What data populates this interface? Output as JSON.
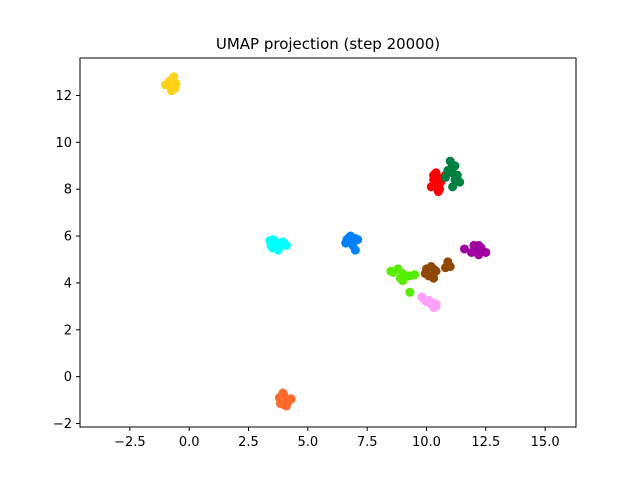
{
  "chart_data": {
    "type": "scatter",
    "title": "UMAP projection (step 20000)",
    "xlabel": "",
    "ylabel": "",
    "xlim": [
      -4.6,
      16.3
    ],
    "ylim": [
      -2.15,
      13.6
    ],
    "xticks": [
      -2.5,
      0.0,
      2.5,
      5.0,
      7.5,
      10.0,
      12.5,
      15.0
    ],
    "xtick_labels": [
      "−2.5",
      "0.0",
      "2.5",
      "5.0",
      "7.5",
      "10.0",
      "12.5",
      "15.0"
    ],
    "yticks": [
      -2,
      0,
      2,
      4,
      6,
      8,
      10,
      12
    ],
    "ytick_labels": [
      "−2",
      "0",
      "2",
      "4",
      "6",
      "8",
      "10",
      "12"
    ],
    "grid": false,
    "legend": "none",
    "series": [
      {
        "color": "#ffd21a",
        "points": [
          [
            -0.8,
            12.4
          ],
          [
            -0.7,
            12.7
          ],
          [
            -0.9,
            12.5
          ],
          [
            -0.6,
            12.3
          ],
          [
            -0.75,
            12.2
          ],
          [
            -1.0,
            12.45
          ],
          [
            -0.65,
            12.8
          ],
          [
            -0.85,
            12.6
          ],
          [
            -0.55,
            12.5
          ],
          [
            -0.7,
            12.35
          ]
        ]
      },
      {
        "color": "#ff6a2a",
        "points": [
          [
            4.0,
            -0.8
          ],
          [
            3.9,
            -1.0
          ],
          [
            4.2,
            -1.0
          ],
          [
            4.0,
            -1.2
          ],
          [
            3.85,
            -1.15
          ],
          [
            4.1,
            -1.25
          ],
          [
            4.3,
            -0.95
          ],
          [
            3.95,
            -0.7
          ],
          [
            4.15,
            -1.1
          ],
          [
            3.8,
            -0.9
          ]
        ]
      },
      {
        "color": "#00ffff",
        "points": [
          [
            3.4,
            5.8
          ],
          [
            3.6,
            5.6
          ],
          [
            3.8,
            5.7
          ],
          [
            3.5,
            5.5
          ],
          [
            3.7,
            5.45
          ],
          [
            3.9,
            5.6
          ],
          [
            4.1,
            5.6
          ],
          [
            3.55,
            5.85
          ],
          [
            3.75,
            5.4
          ],
          [
            3.45,
            5.6
          ],
          [
            3.95,
            5.75
          ],
          [
            3.65,
            5.7
          ]
        ]
      },
      {
        "color": "#0080ff",
        "points": [
          [
            6.7,
            5.9
          ],
          [
            6.8,
            6.0
          ],
          [
            7.0,
            5.9
          ],
          [
            6.6,
            5.7
          ],
          [
            6.9,
            5.6
          ],
          [
            7.0,
            5.4
          ],
          [
            6.75,
            5.75
          ],
          [
            6.65,
            5.85
          ],
          [
            6.85,
            5.8
          ],
          [
            7.1,
            5.85
          ]
        ]
      },
      {
        "color": "#ff0000",
        "points": [
          [
            10.3,
            8.6
          ],
          [
            10.5,
            8.5
          ],
          [
            10.4,
            8.2
          ],
          [
            10.2,
            8.1
          ],
          [
            10.5,
            7.9
          ],
          [
            10.6,
            8.3
          ],
          [
            10.4,
            8.7
          ],
          [
            10.3,
            8.4
          ],
          [
            10.8,
            8.6
          ],
          [
            10.55,
            8.0
          ]
        ]
      },
      {
        "color": "#008040",
        "points": [
          [
            11.0,
            9.2
          ],
          [
            11.2,
            9.0
          ],
          [
            10.9,
            8.8
          ],
          [
            11.1,
            8.7
          ],
          [
            11.3,
            8.6
          ],
          [
            11.4,
            8.3
          ],
          [
            11.1,
            8.1
          ],
          [
            10.8,
            8.5
          ],
          [
            11.2,
            8.4
          ],
          [
            11.05,
            8.9
          ]
        ]
      },
      {
        "color": "#a000a0",
        "points": [
          [
            11.6,
            5.45
          ],
          [
            12.0,
            5.6
          ],
          [
            12.3,
            5.5
          ],
          [
            12.5,
            5.3
          ],
          [
            12.2,
            5.2
          ],
          [
            11.9,
            5.3
          ],
          [
            12.1,
            5.4
          ],
          [
            12.2,
            5.6
          ],
          [
            12.0,
            5.35
          ]
        ]
      },
      {
        "color": "#904800",
        "points": [
          [
            10.0,
            4.6
          ],
          [
            10.2,
            4.7
          ],
          [
            10.4,
            4.5
          ],
          [
            10.3,
            4.2
          ],
          [
            10.1,
            4.3
          ],
          [
            10.9,
            4.9
          ],
          [
            10.8,
            4.65
          ],
          [
            11.0,
            4.7
          ],
          [
            9.95,
            4.4
          ],
          [
            10.35,
            4.55
          ]
        ]
      },
      {
        "color": "#55ee00",
        "points": [
          [
            8.5,
            4.5
          ],
          [
            8.8,
            4.6
          ],
          [
            9.0,
            4.4
          ],
          [
            8.9,
            4.2
          ],
          [
            9.1,
            4.3
          ],
          [
            9.3,
            4.3
          ],
          [
            9.5,
            4.35
          ],
          [
            9.3,
            3.6
          ],
          [
            8.6,
            4.45
          ],
          [
            9.0,
            4.1
          ]
        ]
      },
      {
        "color": "#ffa0ff",
        "points": [
          [
            9.8,
            3.4
          ],
          [
            10.0,
            3.2
          ],
          [
            10.2,
            3.1
          ],
          [
            10.3,
            3.0
          ],
          [
            10.4,
            3.1
          ],
          [
            10.3,
            2.95
          ],
          [
            10.1,
            3.25
          ],
          [
            10.4,
            3.0
          ],
          [
            9.9,
            3.3
          ],
          [
            10.25,
            3.15
          ]
        ]
      }
    ]
  }
}
